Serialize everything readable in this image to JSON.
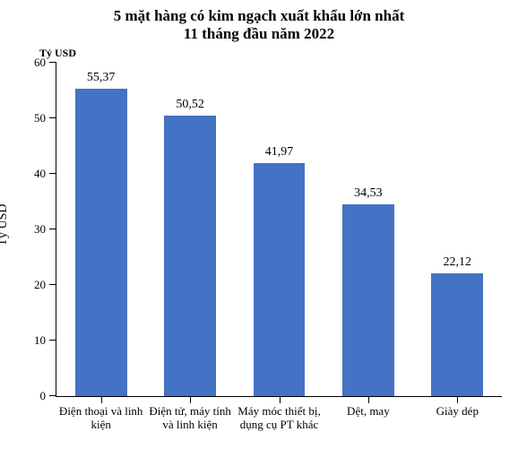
{
  "chart": {
    "type": "bar",
    "title_line1": "5 mặt hàng có kim ngạch xuất khẩu lớn nhất",
    "title_line2": "11 tháng đầu năm 2022",
    "title_fontsize": 17,
    "title_fontweight": "bold",
    "ylabel": "Tỷ USD",
    "ylabel_fontsize": 14,
    "unit_label": "Tỷ USD",
    "unit_label_fontsize": 12,
    "categories": [
      "Điện thoại và linh\nkiện",
      "Điện tử, máy tính\nvà linh kiện",
      "Máy móc thiết bị,\ndụng cụ PT khác",
      "Dệt, may",
      "Giày dép"
    ],
    "values": [
      55.37,
      50.52,
      41.97,
      34.53,
      22.12
    ],
    "value_labels": [
      "55,37",
      "50,52",
      "41,97",
      "34,53",
      "22,12"
    ],
    "bar_color": "#4472c4",
    "bar_width": 0.58,
    "value_fontsize": 14,
    "xtick_fontsize": 13,
    "ytick_fontsize": 13,
    "ylim": [
      0,
      60
    ],
    "ytick_step": 10,
    "yticks": [
      0,
      10,
      20,
      30,
      40,
      50,
      60
    ],
    "background_color": "#ffffff",
    "axis_color": "#000000"
  }
}
